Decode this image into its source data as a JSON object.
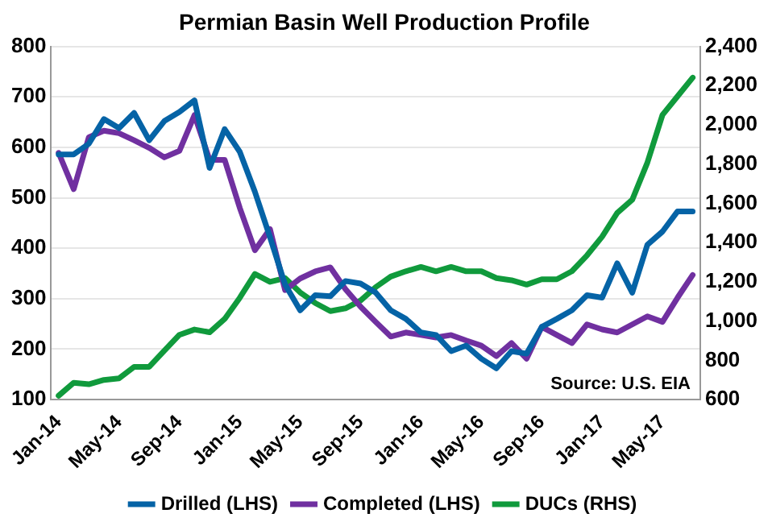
{
  "chart_data": {
    "type": "line",
    "title": "Permian Basin Well Production Profile",
    "categories": [
      "Jan-14",
      null,
      null,
      null,
      "May-14",
      null,
      null,
      null,
      "Sep-14",
      null,
      null,
      null,
      "Jan-15",
      null,
      null,
      null,
      "May-15",
      null,
      null,
      null,
      "Sep-15",
      null,
      null,
      null,
      "Jan-16",
      null,
      null,
      null,
      "May-16",
      null,
      null,
      null,
      "Sep-16",
      null,
      null,
      null,
      "Jan-17",
      null,
      null,
      null,
      "May-17",
      null,
      null
    ],
    "series": [
      {
        "name": "Drilled (LHS)",
        "color": "#0563a6",
        "values": [
          586,
          586,
          607,
          656,
          638,
          668,
          614,
          652,
          670,
          693,
          559,
          636,
          591,
          512,
          422,
          328,
          277,
          307,
          305,
          335,
          330,
          312,
          277,
          260,
          233,
          228,
          196,
          207,
          181,
          162,
          196,
          191,
          244,
          260,
          277,
          307,
          302,
          370,
          312,
          407,
          433,
          473,
          473
        ]
      },
      {
        "name": "Completed (LHS)",
        "color": "#7030a0",
        "values": [
          589,
          517,
          620,
          633,
          628,
          614,
          599,
          580,
          593,
          664,
          575,
          575,
          480,
          396,
          438,
          317,
          340,
          354,
          362,
          319,
          284,
          254,
          225,
          233,
          228,
          223,
          228,
          217,
          207,
          186,
          212,
          181,
          244,
          228,
          212,
          249,
          239,
          233,
          249,
          265,
          254,
          302,
          347
        ]
      },
      {
        "name": "DUCs (RHS)",
        "color": "#109a3c",
        "axis": "y2",
        "values": [
          620,
          686,
          678,
          700,
          708,
          767,
          767,
          849,
          930,
          957,
          943,
          1011,
          1119,
          1240,
          1200,
          1219,
          1146,
          1092,
          1051,
          1065,
          1105,
          1173,
          1227,
          1254,
          1276,
          1254,
          1276,
          1254,
          1254,
          1219,
          1208,
          1186,
          1213,
          1213,
          1254,
          1335,
          1430,
          1551,
          1619,
          1808,
          2051,
          2146,
          2241
        ]
      }
    ],
    "ylim": [
      100,
      800
    ],
    "yticks": [
      100,
      200,
      300,
      400,
      500,
      600,
      700,
      800
    ],
    "y2lim": [
      600,
      2400
    ],
    "y2ticks": [
      600,
      800,
      {
        "value": 1000,
        "label": "1,000"
      },
      {
        "value": 1200,
        "label": "1,200"
      },
      {
        "value": 1400,
        "label": "1,400"
      },
      {
        "value": 1600,
        "label": "1,600"
      },
      {
        "value": 1800,
        "label": "1,800"
      },
      {
        "value": 2000,
        "label": "2,000"
      },
      {
        "value": 2200,
        "label": "2,200"
      },
      {
        "value": 2400,
        "label": "2,400"
      }
    ],
    "grid": "y",
    "legend": "bottom",
    "marker": "none",
    "line_style": "solid",
    "annotations": [
      "Source: U.S. EIA"
    ]
  }
}
